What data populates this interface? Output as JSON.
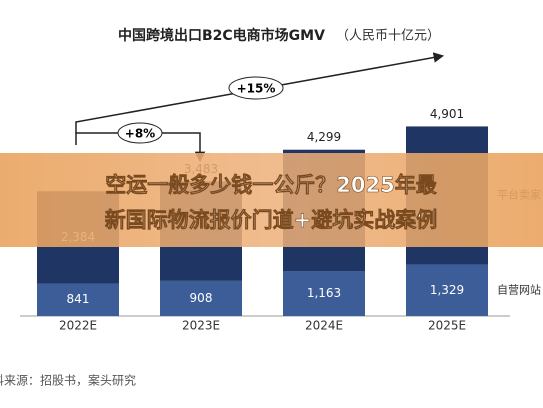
{
  "chart_data": {
    "type": "stacked_bar",
    "title": "中国跨境出口B2C电商市场GMV",
    "subtitle": "（人民币十亿元）",
    "categories": [
      "2022E",
      "2023E",
      "2024E",
      "2025E"
    ],
    "series": [
      {
        "name": "自营网站",
        "color": "#3c5d98",
        "values": [
          841,
          908,
          1163,
          1329
        ],
        "value_labels": [
          "841",
          "908",
          "1,163",
          "1,329"
        ]
      },
      {
        "name": "平台卖家",
        "color": "#1f3563",
        "values": [
          2384,
          2575,
          3136,
          3572
        ],
        "value_labels": [
          "2,384",
          null,
          null,
          null
        ]
      }
    ],
    "totals": [
      3225,
      3483,
      4299,
      4901
    ],
    "total_labels": [
      null,
      "3,483",
      "4,299",
      "4,901"
    ],
    "annotations": [
      "+8%",
      "+15%"
    ],
    "source": "资料来源：招股书，案头研究",
    "ylim": [
      0,
      5300
    ],
    "banner": [
      "空运一般多少钱一公斤？2025年最",
      "新国际物流报价门道+避坑实战案例"
    ]
  }
}
